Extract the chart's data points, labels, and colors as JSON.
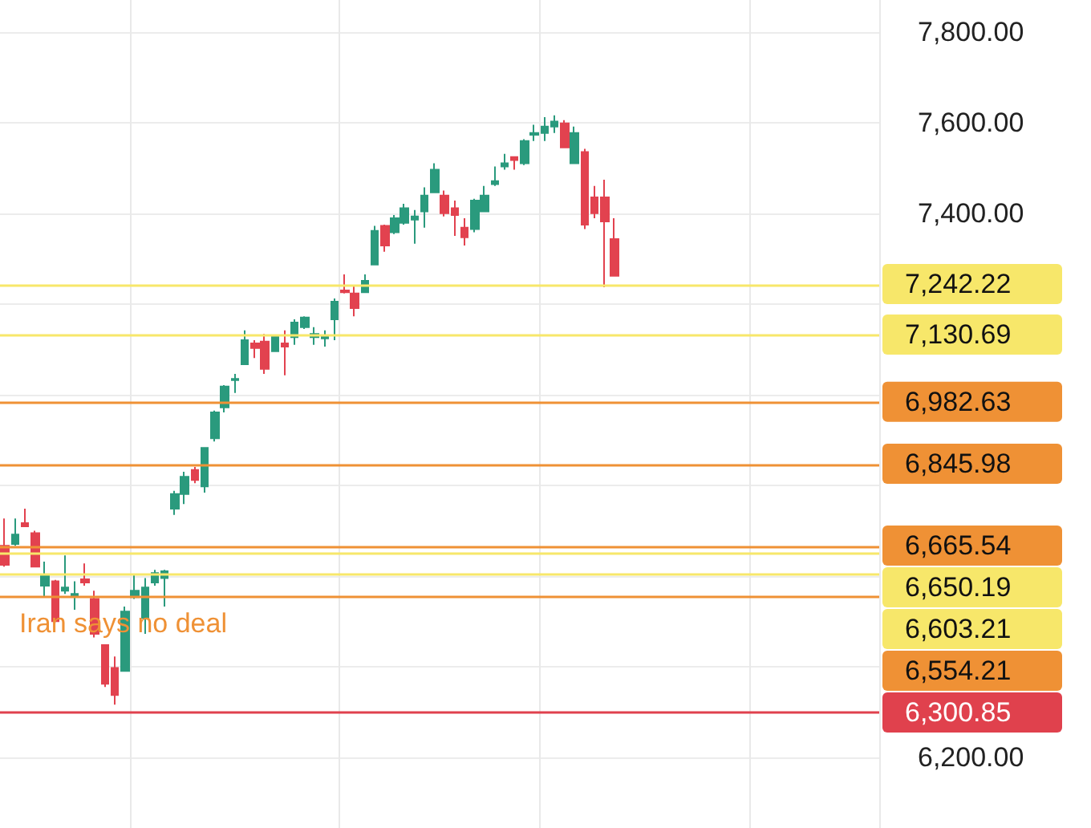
{
  "chart_data": {
    "type": "candlestick",
    "annotations": [
      "Iran says no deal"
    ],
    "categories": [
      null,
      null,
      null,
      null,
      null,
      null,
      null,
      null,
      null,
      null,
      null,
      null,
      null,
      null,
      null,
      null,
      null,
      null,
      null,
      null,
      null,
      null,
      null,
      null,
      null,
      null,
      null,
      null,
      null,
      null,
      null,
      null,
      null,
      null,
      null,
      null,
      null,
      null,
      null,
      null,
      null,
      null,
      null,
      null,
      null,
      null,
      null,
      null,
      null,
      null,
      null,
      null,
      null,
      null,
      null,
      null,
      null,
      null,
      null,
      null,
      null,
      null,
      null,
      null,
      null,
      null,
      null,
      null,
      null,
      null,
      null,
      null,
      null,
      null,
      null,
      null,
      null,
      null,
      null,
      null,
      null,
      null,
      null,
      null,
      null,
      null,
      null,
      null
    ],
    "ohlc": [
      [
        6667,
        6727,
        6621,
        6625
      ],
      [
        6671,
        6727,
        6667,
        6692
      ],
      [
        6717,
        6749,
        6710,
        6710
      ],
      [
        6695,
        6700,
        6621,
        6621
      ],
      [
        6579,
        6632,
        6554,
        6604
      ],
      [
        6589,
        6592,
        6501,
        6501
      ],
      [
        6568,
        6646,
        6561,
        6575
      ],
      [
        6557,
        6589,
        6526,
        6561
      ],
      [
        6593,
        6628,
        6579,
        6586
      ],
      [
        6550,
        6568,
        6465,
        6473
      ],
      [
        6448,
        6448,
        6356,
        6363
      ],
      [
        6398,
        6423,
        6317,
        6338
      ],
      [
        6391,
        6533,
        6391,
        6522
      ],
      [
        6554,
        6604,
        6550,
        6568
      ],
      [
        6508,
        6596,
        6473,
        6575
      ],
      [
        6586,
        6614,
        6579,
        6607
      ],
      [
        6596,
        6614,
        6533,
        6611
      ],
      [
        6749,
        6788,
        6735,
        6781
      ],
      [
        6781,
        6830,
        6759,
        6819
      ],
      [
        6834,
        6841,
        6805,
        6812
      ],
      [
        6798,
        6883,
        6784,
        6883
      ],
      [
        6904,
        6965,
        6897,
        6961
      ],
      [
        6972,
        7021,
        6961,
        7018
      ],
      [
        7032,
        7046,
        7004,
        7035
      ],
      [
        7067,
        7142,
        7067,
        7120
      ],
      [
        7113,
        7120,
        7081,
        7103
      ],
      [
        7117,
        7134,
        7046,
        7057
      ],
      [
        7096,
        7131,
        7096,
        7131
      ],
      [
        7113,
        7142,
        7043,
        7106
      ],
      [
        7127,
        7166,
        7110,
        7159
      ],
      [
        7149,
        7173,
        7145,
        7170
      ],
      [
        7127,
        7149,
        7110,
        7134
      ],
      [
        7124,
        7142,
        7106,
        7131
      ],
      [
        7166,
        7212,
        7120,
        7205
      ],
      [
        7230,
        7265,
        7223,
        7226
      ],
      [
        7223,
        7241,
        7173,
        7191
      ],
      [
        7226,
        7265,
        7226,
        7251
      ],
      [
        7287,
        7372,
        7287,
        7361
      ],
      [
        7372,
        7375,
        7315,
        7329
      ],
      [
        7358,
        7396,
        7354,
        7389
      ],
      [
        7379,
        7421,
        7375,
        7411
      ],
      [
        7386,
        7407,
        7333,
        7393
      ],
      [
        7404,
        7457,
        7368,
        7439
      ],
      [
        7446,
        7510,
        7446,
        7496
      ],
      [
        7439,
        7450,
        7393,
        7400
      ],
      [
        7411,
        7428,
        7350,
        7396
      ],
      [
        7368,
        7389,
        7329,
        7347
      ],
      [
        7365,
        7432,
        7358,
        7428
      ],
      [
        7404,
        7460,
        7404,
        7439
      ],
      [
        7464,
        7503,
        7460,
        7471
      ],
      [
        7503,
        7531,
        7496,
        7510
      ],
      [
        7524,
        7524,
        7496,
        7517
      ],
      [
        7510,
        7563,
        7506,
        7559
      ],
      [
        7573,
        7595,
        7559,
        7577
      ],
      [
        7577,
        7612,
        7559,
        7591
      ],
      [
        7591,
        7616,
        7577,
        7602
      ],
      [
        7598,
        7605,
        7545,
        7545
      ],
      [
        7510,
        7591,
        7510,
        7577
      ],
      [
        7535,
        7542,
        7365,
        7375
      ],
      [
        7435,
        7460,
        7389,
        7400
      ],
      [
        7435,
        7474,
        7237,
        7382
      ],
      [
        7343,
        7389,
        7262,
        7262
      ],
      null,
      null,
      null,
      null,
      null,
      null,
      null,
      null,
      null,
      null,
      null,
      null,
      null,
      null,
      null,
      null,
      null,
      null,
      null,
      null,
      null,
      null,
      null,
      null,
      null,
      null
    ],
    "colors": [
      "#e2424f",
      "#2a9a7d",
      "#e2424f",
      "#e2424f",
      "#2a9a7d",
      "#e2424f",
      "#2a9a7d",
      "#2a9a7d",
      "#e2424f",
      "#e2424f",
      "#e2424f",
      "#e2424f",
      "#2a9a7d",
      "#2a9a7d",
      "#2a9a7d",
      "#2a9a7d",
      "#2a9a7d",
      "#2a9a7d",
      "#2a9a7d",
      "#e2424f",
      "#2a9a7d",
      "#2a9a7d",
      "#2a9a7d",
      "#2a9a7d",
      "#2a9a7d",
      "#e2424f",
      "#e2424f",
      "#2a9a7d",
      "#e2424f",
      "#2a9a7d",
      "#2a9a7d",
      "#2a9a7d",
      "#2a9a7d",
      "#2a9a7d",
      "#e2424f",
      "#e2424f",
      "#2a9a7d",
      "#2a9a7d",
      "#e2424f",
      "#2a9a7d",
      "#2a9a7d",
      "#2a9a7d",
      "#2a9a7d",
      "#2a9a7d",
      "#e2424f",
      "#e2424f",
      "#e2424f",
      "#2a9a7d",
      "#2a9a7d",
      "#2a9a7d",
      "#2a9a7d",
      "#e2424f",
      "#2a9a7d",
      "#2a9a7d",
      "#2a9a7d",
      "#2a9a7d",
      "#e2424f",
      "#2a9a7d",
      "#e2424f",
      "#e2424f",
      "#e2424f",
      "#e2424f",
      null,
      null,
      null,
      null,
      null,
      null,
      null,
      null,
      null,
      null,
      null,
      null,
      null,
      null,
      null,
      null,
      null,
      null,
      null,
      null,
      null,
      null,
      null,
      null,
      null,
      null
    ],
    "ylim": [
      6045,
      7870
    ],
    "yticks": [
      {
        "value": 6200,
        "label": "6,200.00"
      },
      {
        "value": 6400,
        "label": null
      },
      {
        "value": 6600,
        "label": null
      },
      {
        "value": 6800,
        "label": null
      },
      {
        "value": 7000,
        "label": null
      },
      {
        "value": 7200,
        "label": null
      },
      {
        "value": 7400,
        "label": "7,400.00"
      },
      {
        "value": 7600,
        "label": "7,600.00"
      },
      {
        "value": 7800,
        "label": "7,800.00"
      }
    ],
    "ref_lines": [
      {
        "axis": "y",
        "value": 7242.22,
        "label": "7,242.22",
        "color": "#f7e76a"
      },
      {
        "axis": "y",
        "value": 7130.69,
        "label": "7,130.69",
        "color": "#f7e76a"
      },
      {
        "axis": "y",
        "value": 6982.63,
        "label": "6,982.63",
        "color": "#ef9135"
      },
      {
        "axis": "y",
        "value": 6845.98,
        "label": "6,845.98",
        "color": "#ef9135"
      },
      {
        "axis": "y",
        "value": 6665.54,
        "label": "6,665.54",
        "color": "#ef9135"
      },
      {
        "axis": "y",
        "value": 6650.19,
        "label": "6,650.19",
        "color": "#f7e76a"
      },
      {
        "axis": "y",
        "value": 6603.21,
        "label": "6,603.21",
        "color": "#f7e76a"
      },
      {
        "axis": "y",
        "value": 6554.21,
        "label": "6,554.21",
        "color": "#ef9135"
      },
      {
        "axis": "y",
        "value": 6300.85,
        "label": "6,300.85",
        "color": "#e0414d"
      }
    ],
    "grid": true,
    "tick_labels": "y"
  }
}
